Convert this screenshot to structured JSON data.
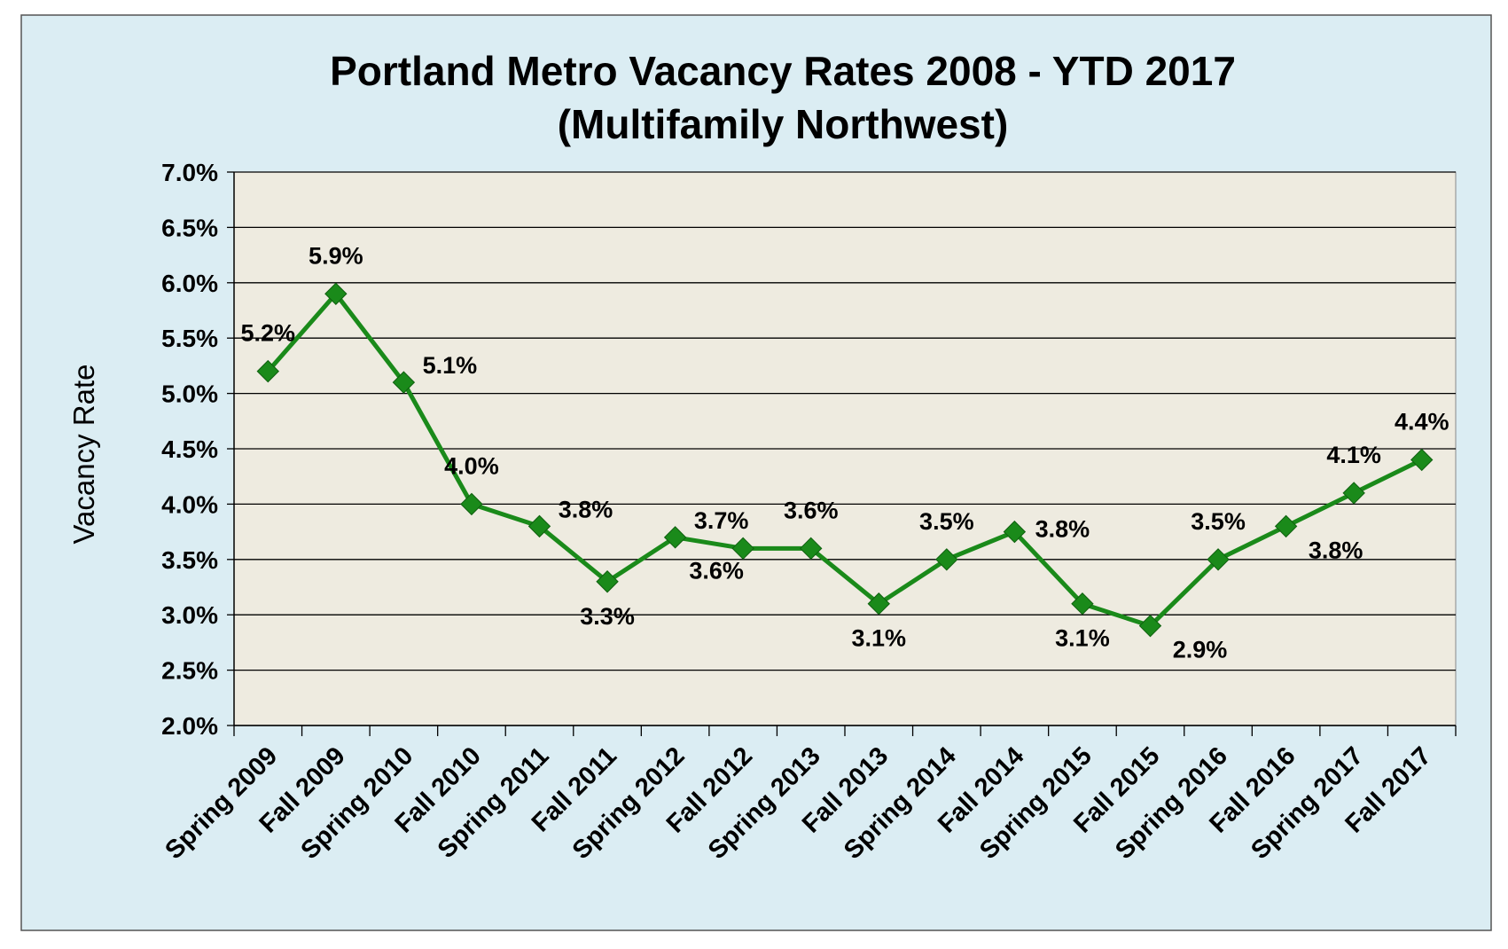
{
  "chart_data": {
    "type": "line",
    "title": "Portland Metro Vacancy Rates 2008 -  YTD 2017",
    "subtitle": "(Multifamily Northwest)",
    "xlabel": "",
    "ylabel": "Vacancy Rate",
    "ylim": [
      2.0,
      7.0
    ],
    "ytick_values": [
      2.0,
      2.5,
      3.0,
      3.5,
      4.0,
      4.5,
      5.0,
      5.5,
      6.0,
      6.5,
      7.0
    ],
    "ytick_labels": [
      "2.0%",
      "2.5%",
      "3.0%",
      "3.5%",
      "4.0%",
      "4.5%",
      "5.0%",
      "5.5%",
      "6.0%",
      "6.5%",
      "7.0%"
    ],
    "grid": "horizontal",
    "legend": "none",
    "categories": [
      "Spring 2009",
      "Fall 2009",
      "Spring 2010",
      "Fall 2010",
      "Spring 2011",
      "Fall 2011",
      "Spring 2012",
      "Fall 2012",
      "Spring 2013",
      "Fall 2013",
      "Spring 2014",
      "Fall 2014",
      "Spring 2015",
      "Fall 2015",
      "Spring 2016",
      "Fall 2016",
      "Spring 2017",
      "Fall 2017"
    ],
    "series": [
      {
        "values": [
          5.2,
          5.9,
          5.1,
          4.0,
          3.8,
          3.3,
          3.7,
          3.6,
          3.6,
          3.1,
          3.5,
          3.75,
          3.1,
          2.9,
          3.5,
          3.8,
          4.1,
          4.4
        ],
        "data_labels": [
          "5.2%",
          "5.9%",
          "5.1%",
          "4.0%",
          "3.8%",
          "3.3%",
          "3.7%",
          "3.6%",
          "3.6%",
          "3.1%",
          "3.5%",
          "3.8%",
          "3.1%",
          "2.9%",
          "3.5%",
          "3.8%",
          "4.1%",
          "4.4%"
        ],
        "label_positions": [
          "above",
          "above",
          "above-right",
          "above",
          "above-right",
          "below",
          "above-right",
          "below-left",
          "above",
          "below",
          "above",
          "right",
          "below",
          "below-right",
          "above",
          "below-right",
          "above",
          "above"
        ]
      }
    ],
    "colors": {
      "line": "#1a8a1a",
      "marker": "#1a8a1a",
      "background": "#dbedf3",
      "plot_area": "#eeebe0",
      "gridline": "#000000"
    }
  }
}
